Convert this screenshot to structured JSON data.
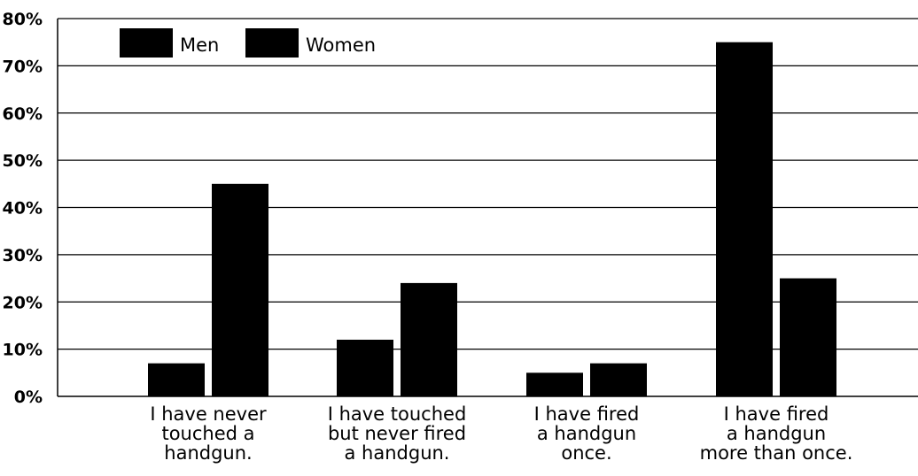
{
  "chart_data": {
    "type": "bar",
    "title": "",
    "xlabel": "",
    "ylabel": "",
    "ylim": [
      0,
      80
    ],
    "yticks": [
      0,
      10,
      20,
      30,
      40,
      50,
      60,
      70,
      80
    ],
    "ytick_labels": [
      "0%",
      "10%",
      "20%",
      "30%",
      "40%",
      "50%",
      "60%",
      "70%",
      "80%"
    ],
    "grid": true,
    "legend_position": "top-left",
    "categories": [
      [
        "I have never",
        "touched a",
        "handgun."
      ],
      [
        "I have touched",
        "but never fired",
        "a handgun."
      ],
      [
        "I have fired",
        "a handgun",
        "once."
      ],
      [
        "I have fired",
        "a handgun",
        "more than once."
      ]
    ],
    "series": [
      {
        "name": "Men",
        "color": "#000000",
        "values": [
          7,
          12,
          5,
          75
        ]
      },
      {
        "name": "Women",
        "color": "#000000",
        "values": [
          45,
          24,
          7,
          25
        ]
      }
    ]
  }
}
